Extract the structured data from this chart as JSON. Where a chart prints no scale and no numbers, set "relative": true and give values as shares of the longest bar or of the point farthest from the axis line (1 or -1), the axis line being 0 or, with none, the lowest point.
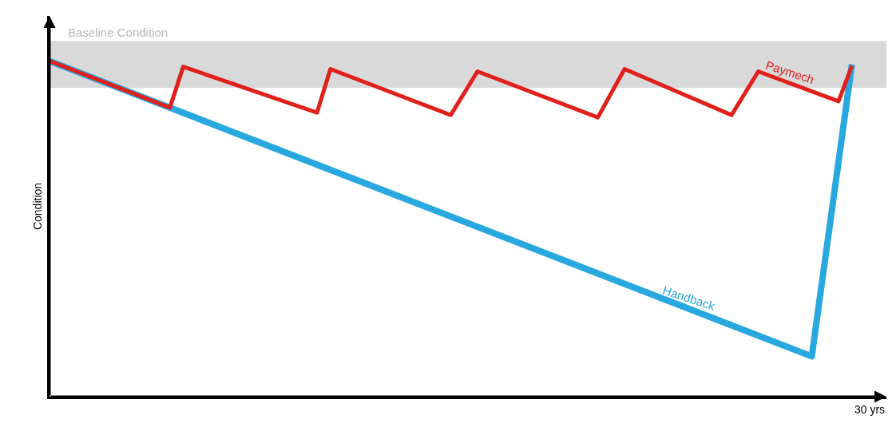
{
  "chart_data": {
    "type": "line",
    "relative": true,
    "ylabel": "Condition",
    "annotations": [
      "30 yrs"
    ],
    "categories": [
      null,
      null,
      null,
      null,
      null,
      null,
      null,
      null,
      null,
      null,
      null,
      null,
      null,
      null,
      null,
      null,
      null,
      null,
      null,
      null,
      null,
      null,
      null,
      null,
      null,
      null,
      null,
      null,
      null,
      null,
      null,
      null,
      null,
      null,
      null,
      null,
      null,
      null,
      null,
      null,
      null,
      null,
      null,
      null,
      null,
      null,
      null,
      null,
      null,
      null,
      null,
      null,
      null,
      null,
      null,
      null,
      null,
      null,
      null,
      null,
      null
    ],
    "series": [
      {
        "name": "Handback",
        "color": "#29a8e0",
        "values": [
          1,
          null,
          null,
          null,
          null,
          null,
          null,
          null,
          null,
          null,
          null,
          null,
          null,
          null,
          null,
          null,
          null,
          null,
          null,
          null,
          null,
          null,
          null,
          null,
          null,
          null,
          null,
          null,
          null,
          null,
          null,
          null,
          null,
          null,
          null,
          null,
          null,
          null,
          null,
          null,
          null,
          null,
          null,
          null,
          null,
          null,
          null,
          null,
          null,
          null,
          null,
          null,
          null,
          null,
          null,
          null,
          null,
          0.12,
          null,
          null,
          0.99
        ]
      },
      {
        "name": "Paymech",
        "color": "#e0201b",
        "values": [
          1,
          null,
          null,
          null,
          null,
          null,
          null,
          null,
          null,
          0.861,
          0.983,
          null,
          null,
          null,
          null,
          null,
          null,
          null,
          null,
          null,
          0.846,
          0.976,
          null,
          null,
          null,
          null,
          null,
          null,
          null,
          null,
          0.839,
          null,
          0.969,
          null,
          null,
          null,
          null,
          null,
          null,
          null,
          null,
          0.832,
          null,
          0.976,
          null,
          null,
          null,
          null,
          null,
          null,
          null,
          0.839,
          null,
          0.969,
          null,
          null,
          null,
          null,
          null,
          0.88,
          0.986
        ]
      }
    ],
    "bands": [
      {
        "axis": "y",
        "from": 0.92,
        "to": 1.06,
        "label": "Baseline Condition",
        "color": "#d9d9d9"
      }
    ],
    "legend": false,
    "marker": "none",
    "line_style": "solid"
  }
}
